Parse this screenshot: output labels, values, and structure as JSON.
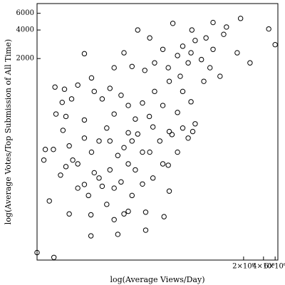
{
  "chart_data": {
    "type": "scatter",
    "x_label": "log(Average Views/Day)",
    "y_label": "log(Average Votes/Top Submission of All Time)",
    "xscale": "log",
    "yscale": "log",
    "xlim": [
      1500,
      6600000
    ],
    "ylim": [
      15,
      7600
    ],
    "xticks": [
      {
        "value": 2000000,
        "label": "2×10⁶"
      },
      {
        "value": 4000000,
        "label": "4×10⁶"
      },
      {
        "value": 6000000,
        "label": "6×10⁶"
      }
    ],
    "yticks": [
      2000,
      4000,
      6000
    ],
    "marker": "open-circle",
    "color": "#000000",
    "x": [
      1500,
      2700,
      2300,
      1900,
      2000,
      2800,
      4600,
      3400,
      4100,
      6200,
      7800,
      10000,
      9000,
      9800,
      17000,
      22000,
      31000,
      66000,
      36000,
      46000,
      76000,
      120000,
      145000,
      31000,
      50000,
      76000,
      120000,
      170000,
      330000,
      690000,
      1100000,
      1800000,
      4800000,
      6000000,
      1600000,
      880000,
      500000,
      320000,
      240000,
      200000,
      150000,
      120000,
      90000,
      75000,
      59000,
      46000,
      36000,
      28000,
      22000,
      17000,
      13000,
      10000,
      7800,
      6200,
      4600,
      3700,
      2900,
      2650,
      13000,
      19000,
      25000,
      31000,
      41000,
      50000,
      22000,
      14500,
      11000,
      7800,
      6200,
      4100,
      5200,
      28000,
      41000,
      59000,
      85000,
      108000,
      165000,
      240000,
      370000,
      290000,
      220000,
      150000,
      460000,
      690000,
      1000000,
      540000,
      370000,
      240000,
      90000,
      64000,
      41000,
      22000,
      19000,
      14500,
      11000,
      145000,
      200000,
      320000,
      620000,
      2500000,
      340000,
      125000,
      36000,
      25000,
      9800,
      66000,
      150000,
      290000,
      200000,
      85000,
      59000,
      36000,
      19000,
      7800,
      5000,
      3600,
      3900
    ],
    "y": [
      18,
      16,
      63,
      170,
      220,
      1000,
      46,
      118,
      490,
      1050,
      2250,
      1250,
      72,
      45,
      58,
      40,
      46,
      48,
      330,
      134,
      206,
      155,
      150,
      2300,
      4000,
      3300,
      2500,
      4700,
      4000,
      4800,
      4300,
      5300,
      4100,
      2800,
      2300,
      1300,
      1150,
      700,
      900,
      540,
      340,
      640,
      900,
      490,
      680,
      460,
      640,
      820,
      520,
      370,
      270,
      206,
      290,
      155,
      240,
      350,
      520,
      220,
      110,
      134,
      190,
      230,
      270,
      320,
      86,
      90,
      125,
      94,
      86,
      145,
      170,
      100,
      72,
      95,
      110,
      270,
      316,
      370,
      410,
      1800,
      1300,
      1150,
      1950,
      2500,
      3600,
      3300,
      3100,
      2700,
      1800,
      1500,
      1650,
      1600,
      970,
      750,
      900,
      1600,
      2150,
      2300,
      1600,
      1800,
      340,
      43,
      49,
      28,
      27,
      31,
      80,
      290,
      206,
      380,
      206,
      155,
      270,
      450,
      750,
      690,
      950
    ]
  }
}
